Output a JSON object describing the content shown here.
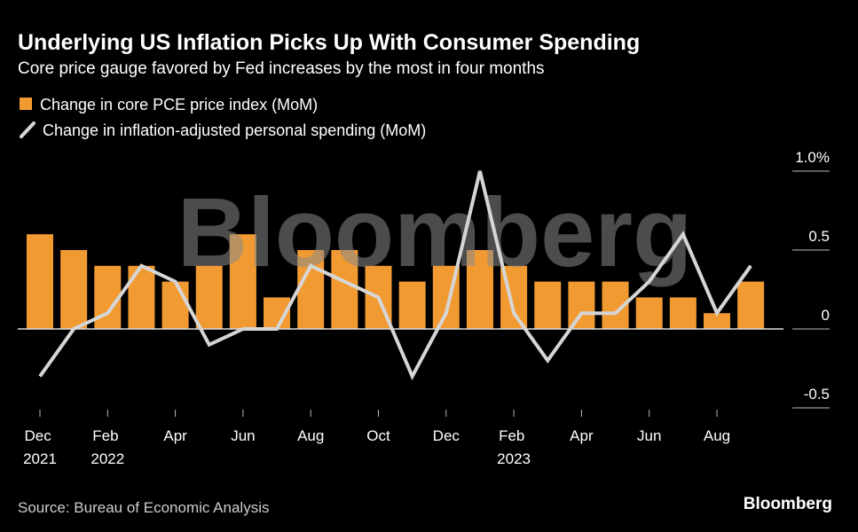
{
  "chart_data": {
    "type": "bar_line",
    "title": "Underlying US Inflation Picks Up With Consumer Spending",
    "subtitle": "Core price gauge favored by Fed increases by the most in four months",
    "source": "Source: Bureau of Economic Analysis",
    "logo": "Bloomberg",
    "watermark": "Bloomberg",
    "categories": [
      "Dec 2021",
      null,
      "Feb 2022",
      null,
      "Apr",
      null,
      "Jun",
      null,
      "Aug",
      null,
      "Oct",
      null,
      "Dec",
      null,
      "Feb 2023",
      null,
      "Apr",
      null,
      "Jun",
      null,
      "Aug",
      null
    ],
    "series": [
      {
        "name": "Change in core PCE price index (MoM)",
        "type": "bar",
        "color": "#f29a32",
        "values": [
          0.6,
          0.5,
          0.4,
          0.4,
          0.3,
          0.4,
          0.6,
          0.2,
          0.5,
          0.5,
          0.4,
          0.3,
          0.4,
          0.5,
          0.4,
          0.3,
          0.3,
          0.3,
          0.2,
          0.2,
          0.1,
          0.3
        ]
      },
      {
        "name": "Change in inflation-adjusted personal spending (MoM)",
        "type": "line",
        "color": "#d6d6d6",
        "values": [
          -0.3,
          0,
          0.1,
          0.4,
          0.3,
          -0.1,
          0,
          0,
          0.4,
          0.3,
          0.2,
          -0.3,
          0.1,
          1.0,
          0.1,
          -0.2,
          0.1,
          0.1,
          0.3,
          0.6,
          0.1,
          0.4
        ]
      }
    ],
    "ylim": [
      -0.6,
      1.1
    ],
    "yticks": [
      {
        "value": 1,
        "label": "1.0%"
      },
      0.5,
      0,
      -0.5
    ],
    "grid": true
  }
}
